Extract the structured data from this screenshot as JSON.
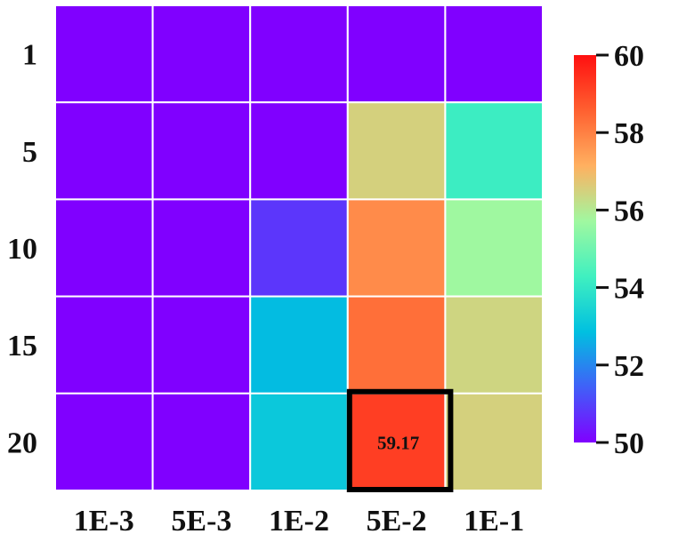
{
  "chart_data": {
    "type": "heatmap",
    "title": "",
    "xlabel": "",
    "ylabel": "",
    "x_categories": [
      "1E-3",
      "5E-3",
      "1E-2",
      "5E-2",
      "1E-1"
    ],
    "y_categories": [
      "1",
      "5",
      "10",
      "15",
      "20"
    ],
    "values": [
      [
        50.0,
        50.0,
        50.0,
        50.0,
        50.0
      ],
      [
        50.0,
        50.0,
        50.0,
        56.5,
        54.2
      ],
      [
        50.0,
        50.0,
        50.8,
        57.8,
        55.7
      ],
      [
        50.0,
        50.0,
        52.8,
        58.3,
        56.4
      ],
      [
        50.0,
        50.0,
        53.1,
        59.17,
        56.5
      ]
    ],
    "highlight": {
      "row": 4,
      "col": 3,
      "label": "59.17"
    },
    "colorbar": {
      "min": 50,
      "max": 60,
      "ticks": [
        "50",
        "52",
        "54",
        "56",
        "58",
        "60"
      ],
      "colormap": "rainbow",
      "colors": [
        "#8000ff",
        "#4060f8",
        "#00c0e0",
        "#40f0c0",
        "#a0f8a0",
        "#ffb060",
        "#ff6030",
        "#ff1010"
      ]
    },
    "grid_color": "#ffffff",
    "highlight_border_color": "#000000"
  }
}
